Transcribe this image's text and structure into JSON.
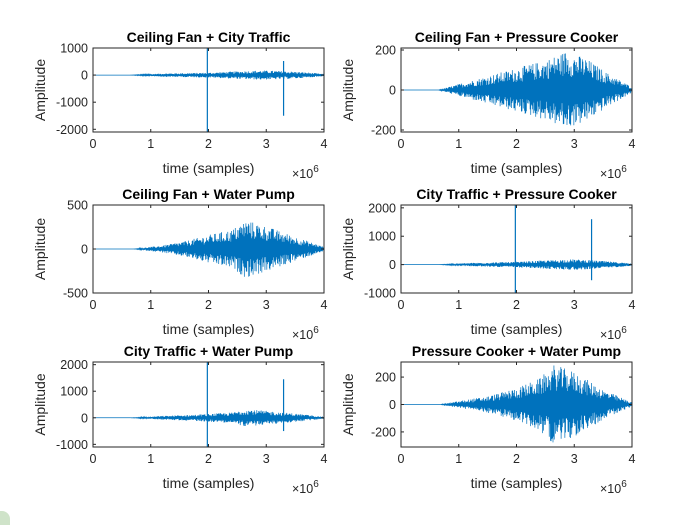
{
  "chart_data": [
    {
      "type": "line",
      "title": "Ceiling Fan + City Traffic",
      "xlabel": "time (samples)",
      "ylabel": "Amplitude",
      "x_exponent": "×10^6",
      "xlim": [
        0,
        4000000
      ],
      "ylim": [
        -2100,
        1000
      ],
      "xticks": [
        0,
        1,
        2,
        3,
        4
      ],
      "yticks": [
        "-2000",
        "-1000",
        "0",
        "1000"
      ],
      "ytick_values": [
        -2000,
        -1000,
        0,
        1000
      ],
      "color": "#0072BD",
      "envelope": {
        "start": 0.63,
        "end": 4.0,
        "points": [
          [
            0.63,
            0
          ],
          [
            1.2,
            60
          ],
          [
            2.0,
            90
          ],
          [
            2.5,
            140
          ],
          [
            2.9,
            170
          ],
          [
            3.3,
            150
          ],
          [
            3.7,
            100
          ],
          [
            4.0,
            40
          ]
        ]
      },
      "spikes": [
        [
          1.98,
          1000,
          -2100
        ],
        [
          3.3,
          520,
          -1500
        ]
      ]
    },
    {
      "type": "line",
      "title": "Ceiling Fan + Pressure Cooker",
      "xlabel": "time (samples)",
      "ylabel": "Amplitude",
      "x_exponent": "×10^6",
      "xlim": [
        0,
        4000000
      ],
      "ylim": [
        -210,
        210
      ],
      "xticks": [
        0,
        1,
        2,
        3,
        4
      ],
      "yticks": [
        "-200",
        "0",
        "200"
      ],
      "ytick_values": [
        -200,
        0,
        200
      ],
      "color": "#0072BD",
      "envelope": {
        "start": 0.65,
        "end": 4.0,
        "points": [
          [
            0.65,
            0
          ],
          [
            1.0,
            30
          ],
          [
            1.5,
            70
          ],
          [
            2.0,
            110
          ],
          [
            2.5,
            150
          ],
          [
            2.85,
            195
          ],
          [
            3.2,
            160
          ],
          [
            3.6,
            80
          ],
          [
            4.0,
            15
          ]
        ]
      },
      "spikes": []
    },
    {
      "type": "line",
      "title": "Ceiling Fan + Water Pump",
      "xlabel": "time (samples)",
      "ylabel": "Amplitude",
      "x_exponent": "×10^6",
      "xlim": [
        0,
        4000000
      ],
      "ylim": [
        -500,
        500
      ],
      "xticks": [
        0,
        1,
        2,
        3,
        4
      ],
      "yticks": [
        "-500",
        "0",
        "500"
      ],
      "ytick_values": [
        -500,
        0,
        500
      ],
      "color": "#0072BD",
      "envelope": {
        "start": 0.7,
        "end": 4.0,
        "points": [
          [
            0.7,
            0
          ],
          [
            1.2,
            40
          ],
          [
            1.6,
            90
          ],
          [
            2.0,
            160
          ],
          [
            2.4,
            220
          ],
          [
            2.65,
            330
          ],
          [
            3.0,
            260
          ],
          [
            3.5,
            140
          ],
          [
            4.0,
            25
          ]
        ]
      },
      "spikes": []
    },
    {
      "type": "line",
      "title": "City Traffic + Pressure Cooker",
      "xlabel": "time (samples)",
      "ylabel": "Amplitude",
      "x_exponent": "×10^6",
      "xlim": [
        0,
        4000000
      ],
      "ylim": [
        -1000,
        2100
      ],
      "xticks": [
        0,
        1,
        2,
        3,
        4
      ],
      "yticks": [
        "-1000",
        "0",
        "1000",
        "2000"
      ],
      "ytick_values": [
        -1000,
        0,
        1000,
        2000
      ],
      "color": "#0072BD",
      "envelope": {
        "start": 0.65,
        "end": 4.0,
        "points": [
          [
            0.65,
            0
          ],
          [
            1.2,
            60
          ],
          [
            2.0,
            100
          ],
          [
            2.6,
            160
          ],
          [
            3.0,
            190
          ],
          [
            3.5,
            130
          ],
          [
            4.0,
            40
          ]
        ]
      },
      "spikes": [
        [
          1.98,
          2100,
          -1000
        ],
        [
          3.3,
          1600,
          -550
        ]
      ]
    },
    {
      "type": "line",
      "title": "City Traffic + Water Pump",
      "xlabel": "time (samples)",
      "ylabel": "Amplitude",
      "x_exponent": "×10^6",
      "xlim": [
        0,
        4000000
      ],
      "ylim": [
        -1100,
        2100
      ],
      "xticks": [
        0,
        1,
        2,
        3,
        4
      ],
      "yticks": [
        "-1000",
        "0",
        "1000",
        "2000"
      ],
      "ytick_values": [
        -1000,
        0,
        1000,
        2000
      ],
      "color": "#0072BD",
      "envelope": {
        "start": 0.65,
        "end": 4.0,
        "points": [
          [
            0.65,
            0
          ],
          [
            1.2,
            70
          ],
          [
            1.8,
            120
          ],
          [
            2.4,
            200
          ],
          [
            2.65,
            330
          ],
          [
            3.0,
            260
          ],
          [
            3.5,
            160
          ],
          [
            4.0,
            40
          ]
        ]
      },
      "spikes": [
        [
          1.98,
          2100,
          -1100
        ],
        [
          3.3,
          1450,
          -500
        ]
      ]
    },
    {
      "type": "line",
      "title": "Pressure Cooker + Water Pump",
      "xlabel": "time (samples)",
      "ylabel": "Amplitude",
      "x_exponent": "×10^6",
      "xlim": [
        0,
        4000000
      ],
      "ylim": [
        -310,
        310
      ],
      "xticks": [
        0,
        1,
        2,
        3,
        4
      ],
      "yticks": [
        "-200",
        "0",
        "200"
      ],
      "ytick_values": [
        -200,
        0,
        200
      ],
      "color": "#0072BD",
      "envelope": {
        "start": 0.68,
        "end": 4.0,
        "points": [
          [
            0.68,
            0
          ],
          [
            1.0,
            25
          ],
          [
            1.5,
            60
          ],
          [
            2.0,
            120
          ],
          [
            2.4,
            190
          ],
          [
            2.65,
            290
          ],
          [
            3.0,
            240
          ],
          [
            3.5,
            110
          ],
          [
            4.0,
            15
          ]
        ]
      },
      "spikes": []
    }
  ]
}
